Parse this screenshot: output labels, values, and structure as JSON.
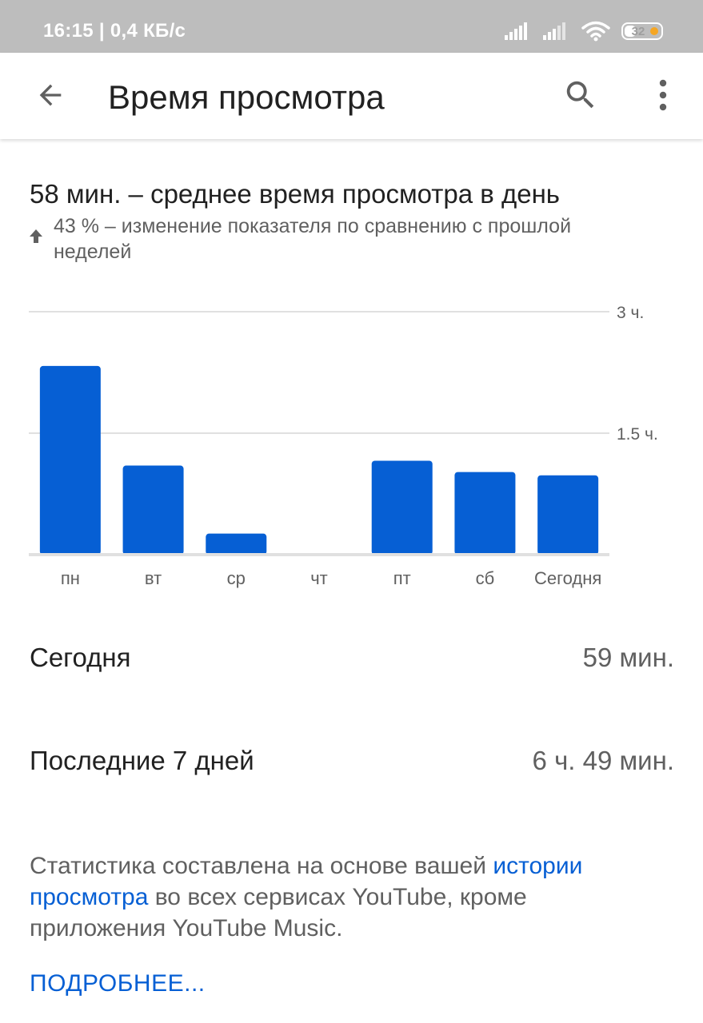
{
  "status_bar": {
    "time_speed": "16:15 | 0,4 КБ/с",
    "battery": "32"
  },
  "app_bar": {
    "title": "Время просмотра",
    "back_icon": "arrow-back-icon",
    "search_icon": "search-icon",
    "more_icon": "more-vert-icon"
  },
  "summary_header": {
    "headline": "58 мин. – среднее время просмотра в день",
    "change_icon": "arrow-up-icon",
    "change_text": "43 % – изменение показателя по сравнению с прошлой неделей"
  },
  "chart_data": {
    "type": "bar",
    "categories": [
      "пн",
      "вт",
      "ср",
      "чт",
      "пт",
      "сб",
      "Сегодня"
    ],
    "values": [
      2.33,
      1.1,
      0.26,
      0,
      1.16,
      1.02,
      0.98
    ],
    "y_unit": "hours",
    "ylim": [
      0,
      3
    ],
    "y_ticks": [
      {
        "value": 3,
        "label": "3 ч."
      },
      {
        "value": 1.5,
        "label": "1.5 ч."
      }
    ],
    "grid": true,
    "bar_color": "#065fd4"
  },
  "stats": [
    {
      "label": "Сегодня",
      "value": "59 мин."
    },
    {
      "label": "Последние 7 дней",
      "value": "6 ч. 49 мин."
    }
  ],
  "footnote": {
    "before": "Статистика составлена на основе вашей ",
    "link": "истории просмотра",
    "after": " во всех сервисах YouTube, кроме приложения YouTube Music."
  },
  "more_link": "ПОДРОБНЕЕ..."
}
